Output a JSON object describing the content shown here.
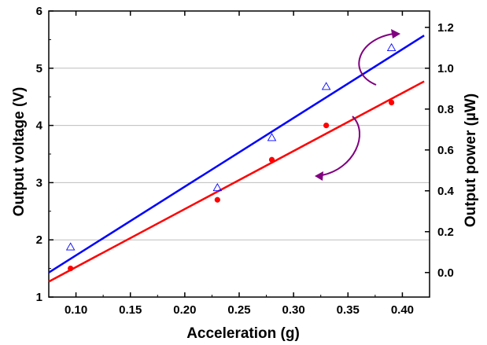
{
  "chart_data": {
    "type": "scatter",
    "title": "",
    "xlabel": "Acceleration (g)",
    "ylabel": "Output voltage (V)",
    "y2label": "Output power (µW)",
    "xlim": [
      0.075,
      0.425
    ],
    "ylim": [
      1,
      6
    ],
    "y2lim": [
      -0.12,
      1.28
    ],
    "x_ticks": [
      0.1,
      0.15,
      0.2,
      0.25,
      0.3,
      0.35,
      0.4
    ],
    "x_tick_labels": [
      "0.10",
      "0.15",
      "0.20",
      "0.25",
      "0.30",
      "0.35",
      "0.40"
    ],
    "y_ticks": [
      1,
      2,
      3,
      4,
      5,
      6
    ],
    "y_tick_labels": [
      "1",
      "2",
      "3",
      "4",
      "5",
      "6"
    ],
    "y2_ticks": [
      0.0,
      0.2,
      0.4,
      0.6,
      0.8,
      1.0,
      1.2
    ],
    "y2_tick_labels": [
      "0.0",
      "0.2",
      "0.4",
      "0.6",
      "0.8",
      "1.0",
      "1.2"
    ],
    "grid": "horizontal",
    "series": [
      {
        "axis": "left",
        "marker": "filled-circle",
        "color": "#ff0000",
        "points": [
          {
            "x": 0.095,
            "y": 1.5
          },
          {
            "x": 0.23,
            "y": 2.7
          },
          {
            "x": 0.28,
            "y": 3.4
          },
          {
            "x": 0.33,
            "y": 4.0
          },
          {
            "x": 0.39,
            "y": 4.4
          }
        ],
        "fit_line": [
          {
            "x": 0.075,
            "y": 1.27
          },
          {
            "x": 0.42,
            "y": 4.77
          }
        ]
      },
      {
        "axis": "right",
        "marker": "open-triangle",
        "color": "#0000ff",
        "points": [
          {
            "x": 0.095,
            "y": 0.125
          },
          {
            "x": 0.23,
            "y": 0.415
          },
          {
            "x": 0.28,
            "y": 0.66
          },
          {
            "x": 0.33,
            "y": 0.91
          },
          {
            "x": 0.39,
            "y": 1.1
          }
        ],
        "fit_line": [
          {
            "x": 0.075,
            "y": 0.0
          },
          {
            "x": 0.42,
            "y": 1.16
          }
        ]
      }
    ],
    "annotations": [
      {
        "type": "curved-arrow",
        "direction": "right-axis",
        "color": "#800080"
      },
      {
        "type": "curved-arrow",
        "direction": "left-axis",
        "color": "#800080"
      }
    ]
  }
}
